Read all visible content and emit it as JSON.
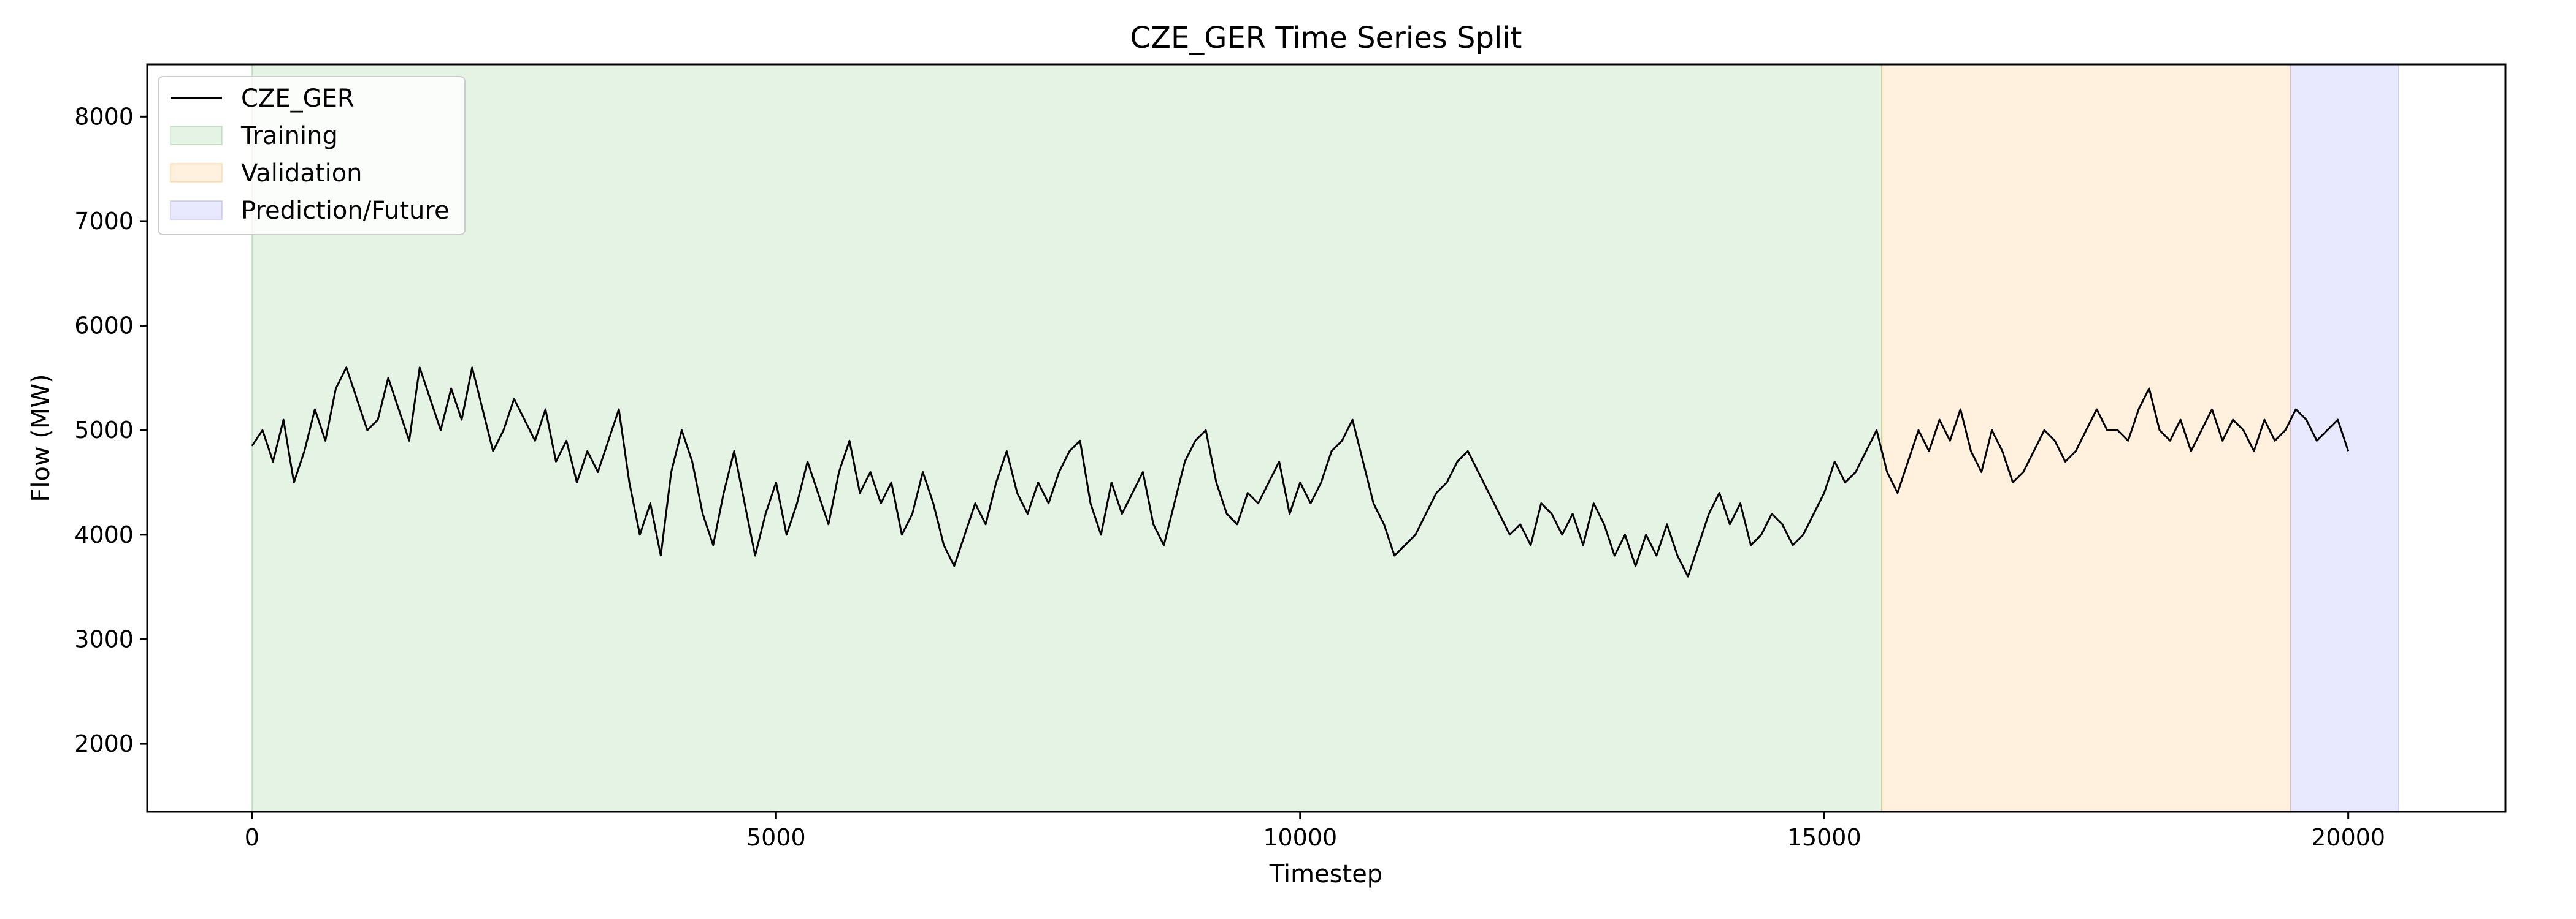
{
  "chart_data": {
    "type": "line",
    "title": "CZE_GER Time Series Split",
    "xlabel": "Timestep",
    "ylabel": "Flow (MW)",
    "xlim": [
      -1000,
      21500
    ],
    "ylim": [
      1350,
      8500
    ],
    "xticks": [
      0,
      5000,
      10000,
      15000,
      20000
    ],
    "yticks": [
      2000,
      3000,
      4000,
      5000,
      6000,
      7000,
      8000
    ],
    "grid": false,
    "legend_position": "top-left",
    "colors": {
      "line": "#000000",
      "training": "#2ca02c",
      "validation": "#ff9f1c",
      "prediction": "#6666ff"
    },
    "regions": [
      {
        "name": "Training",
        "x_start": 0,
        "x_end": 15550,
        "color": "#2ca02c"
      },
      {
        "name": "Validation",
        "x_start": 15550,
        "x_end": 19450,
        "color": "#ff9f1c"
      },
      {
        "name": "Prediction/Future",
        "x_start": 19450,
        "x_end": 20480,
        "color": "#6666ff"
      }
    ],
    "series": [
      {
        "name": "CZE_GER",
        "x_start": 0,
        "x_step": 100,
        "values": [
          4850,
          5000,
          4700,
          5100,
          4500,
          4800,
          5200,
          4900,
          5400,
          5600,
          5300,
          5000,
          5100,
          5500,
          5200,
          4900,
          5600,
          5300,
          5000,
          5400,
          5100,
          5600,
          5200,
          4800,
          5000,
          5300,
          5100,
          4900,
          5200,
          4700,
          4900,
          4500,
          4800,
          4600,
          4900,
          5200,
          4500,
          4000,
          4300,
          3800,
          4600,
          5000,
          4700,
          4200,
          3900,
          4400,
          4800,
          4300,
          3800,
          4200,
          4500,
          4000,
          4300,
          4700,
          4400,
          4100,
          4600,
          4900,
          4400,
          4600,
          4300,
          4500,
          4000,
          4200,
          4600,
          4300,
          3900,
          3700,
          4000,
          4300,
          4100,
          4500,
          4800,
          4400,
          4200,
          4500,
          4300,
          4600,
          4800,
          4900,
          4300,
          4000,
          4500,
          4200,
          4400,
          4600,
          4100,
          3900,
          4300,
          4700,
          4900,
          5000,
          4500,
          4200,
          4100,
          4400,
          4300,
          4500,
          4700,
          4200,
          4500,
          4300,
          4500,
          4800,
          4900,
          5100,
          4700,
          4300,
          4100,
          3800,
          3900,
          4000,
          4200,
          4400,
          4500,
          4700,
          4800,
          4600,
          4400,
          4200,
          4000,
          4100,
          3900,
          4300,
          4200,
          4000,
          4200,
          3900,
          4300,
          4100,
          3800,
          4000,
          3700,
          4000,
          3800,
          4100,
          3800,
          3600,
          3900,
          4200,
          4400,
          4100,
          4300,
          3900,
          4000,
          4200,
          4100,
          3900,
          4000,
          4200,
          4400,
          4700,
          4500,
          4600,
          4800,
          5000,
          4600,
          4400,
          4700,
          5000,
          4800,
          5100,
          4900,
          5200,
          4800,
          4600,
          5000,
          4800,
          4500,
          4600,
          4800,
          5000,
          4900,
          4700,
          4800,
          5000,
          5200,
          5000,
          5000,
          4900,
          5200,
          5400,
          5000,
          4900,
          5100,
          4800,
          5000,
          5200,
          4900,
          5100,
          5000,
          4800,
          5100,
          4900,
          5000,
          5200,
          5100,
          4900,
          5000,
          5100,
          4800
        ]
      }
    ]
  }
}
